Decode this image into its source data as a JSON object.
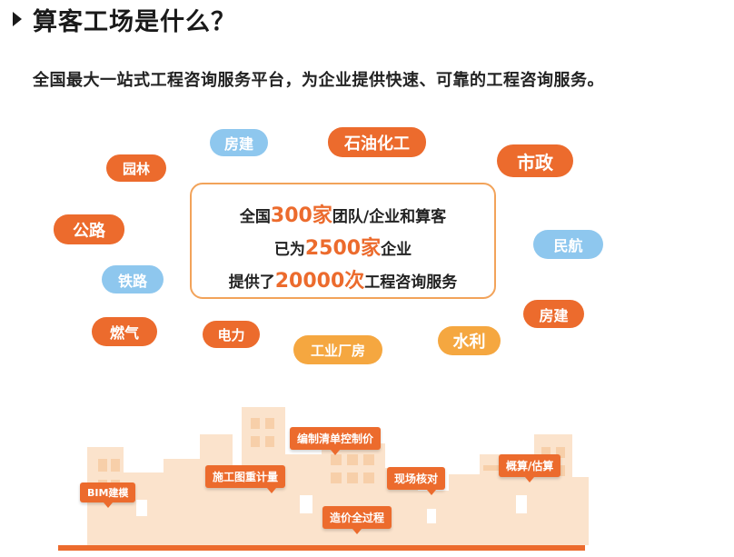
{
  "header": {
    "title": "算客工场是什么？",
    "subtitle": "全国最大一站式工程咨询服务平台，为企业提供快速、可靠的工程咨询服务。"
  },
  "tags": [
    {
      "id": "fangjian-1",
      "label": "房建",
      "color": "blue"
    },
    {
      "id": "shiyou",
      "label": "石油化工",
      "color": "orange"
    },
    {
      "id": "shizheng",
      "label": "市政",
      "color": "orange"
    },
    {
      "id": "yuanlin",
      "label": "园林",
      "color": "orange"
    },
    {
      "id": "gonglu",
      "label": "公路",
      "color": "orange"
    },
    {
      "id": "minhang",
      "label": "民航",
      "color": "blue"
    },
    {
      "id": "tielu",
      "label": "铁路",
      "color": "blue"
    },
    {
      "id": "fangjian-2",
      "label": "房建",
      "color": "orange"
    },
    {
      "id": "ranqi",
      "label": "燃气",
      "color": "orange"
    },
    {
      "id": "dianli",
      "label": "电力",
      "color": "orange"
    },
    {
      "id": "gongye",
      "label": "工业厂房",
      "color": "amber"
    },
    {
      "id": "shuili",
      "label": "水利",
      "color": "amber"
    }
  ],
  "stats": {
    "line1": {
      "prefix": "全国",
      "number": "300家",
      "suffix": "团队/企业和算客"
    },
    "line2": {
      "prefix": "已为",
      "number": "2500家",
      "suffix": "企业"
    },
    "line3": {
      "prefix": "提供了",
      "number": "20000次",
      "suffix": "工程咨询服务"
    }
  },
  "callouts": {
    "bim": "BIM建模",
    "shigong": "施工图重计量",
    "bianzhi": "编制清单控制价",
    "zaojia": "造价全过程",
    "xianchang": "现场核对",
    "gaisuan": "概算/估算"
  },
  "colors": {
    "accent": "#ec6b2d",
    "blue": "#8ec7ee",
    "amber": "#f5a740",
    "city": "#fbe3cc"
  }
}
